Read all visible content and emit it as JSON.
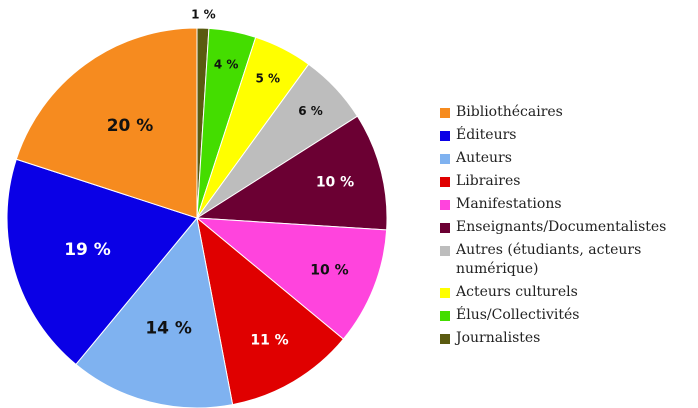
{
  "chart_data": {
    "type": "pie",
    "categories": [
      "Bibliothécaires",
      "Éditeurs",
      "Auteurs",
      "Libraires",
      "Manifestations",
      "Enseignants/Documentalistes",
      "Autres (étudiants, acteurs numérique)",
      "Acteurs culturels",
      "Élus/Collectivités",
      "Journalistes"
    ],
    "values": [
      20,
      19,
      14,
      11,
      10,
      10,
      6,
      5,
      4,
      1
    ],
    "value_labels": [
      "20 %",
      "19 %",
      "14 %",
      "11 %",
      "10 %",
      "10 %",
      "6 %",
      "5 %",
      "4 %",
      "1 %"
    ],
    "colors": [
      "#f68b1f",
      "#0a00e6",
      "#7fb2f0",
      "#e00000",
      "#ff44dd",
      "#6b0033",
      "#bdbdbd",
      "#ffff00",
      "#44dd00",
      "#5a5a10"
    ]
  }
}
